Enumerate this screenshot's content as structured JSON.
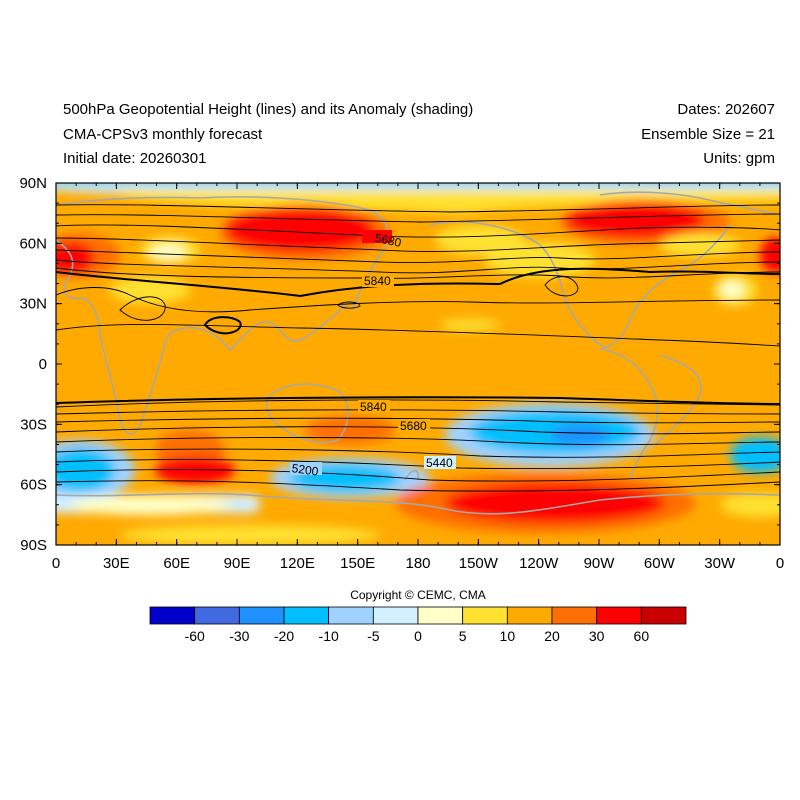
{
  "header": {
    "title": "500hPa Geopotential Height (lines) and its Anomaly (shading)",
    "model": "CMA-CPSv3 monthly forecast",
    "initial": "Initial date: 20260301",
    "dates": "Dates: 202607",
    "ensemble": "Ensemble Size = 21",
    "units": "Units: gpm"
  },
  "axes": {
    "lat_labels": [
      "90N",
      "60N",
      "30N",
      "0",
      "30S",
      "60S",
      "90S"
    ],
    "lon_labels": [
      "0",
      "30E",
      "60E",
      "90E",
      "120E",
      "150E",
      "180",
      "150W",
      "120W",
      "90W",
      "60W",
      "30W",
      "0"
    ]
  },
  "contour_labels": [
    "5680",
    "5840",
    "5840",
    "5680",
    "5440",
    "5200"
  ],
  "copyright": "Copyright © CEMC, CMA",
  "colorbar": {
    "labels": [
      "-60",
      "-30",
      "-20",
      "-10",
      "-5",
      "0",
      "5",
      "10",
      "20",
      "30",
      "60"
    ],
    "colors": [
      "#0000cd",
      "#4169e1",
      "#1e90ff",
      "#00bfff",
      "#a0d2ff",
      "#d2f0ff",
      "#ffffc8",
      "#ffe132",
      "#ffaa00",
      "#ff6e00",
      "#ff0000",
      "#c80000"
    ]
  },
  "palette": {
    "coastline": "#a8a8a8",
    "contour": "#000000"
  }
}
